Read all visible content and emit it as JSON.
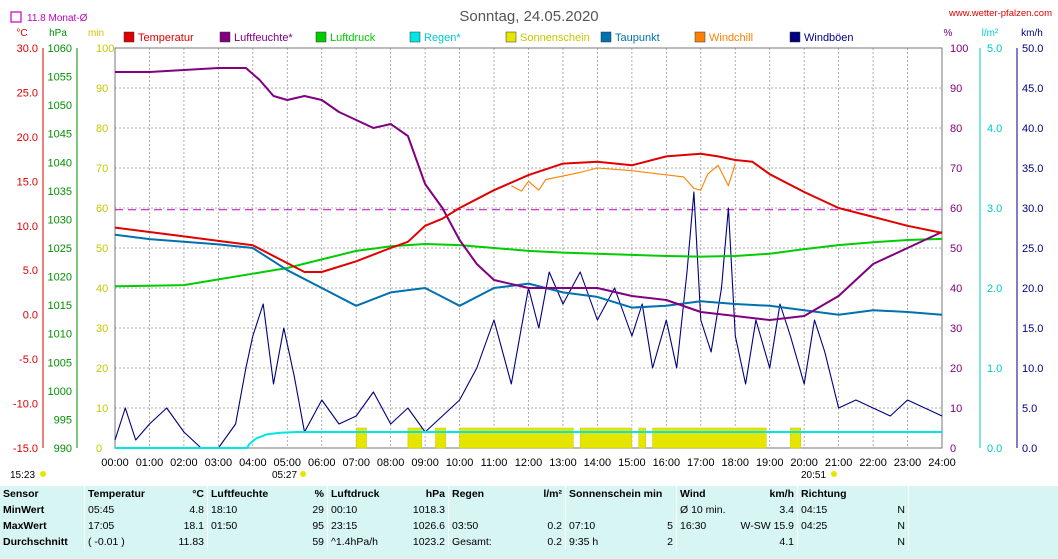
{
  "header": {
    "title": "Sonntag, 24.05.2020",
    "site": "www.wetter-pfalzen.com",
    "monthly_avg": "11.8 Monat-Ø",
    "sunrise": "05:27",
    "sunset": "20:51",
    "now": "15:23"
  },
  "chart_data": {
    "type": "line",
    "title": "Sonntag, 24.05.2020",
    "x_ticks": [
      "00:00",
      "01:00",
      "02:00",
      "03:00",
      "04:00",
      "05:00",
      "06:00",
      "07:00",
      "08:00",
      "09:00",
      "10:00",
      "11:00",
      "12:00",
      "13:00",
      "14:00",
      "15:00",
      "16:00",
      "17:00",
      "18:00",
      "19:00",
      "20:00",
      "21:00",
      "22:00",
      "23:00",
      "24:00"
    ],
    "axes": {
      "temperature": {
        "unit": "°C",
        "range": [
          -15,
          30
        ],
        "ticks": [
          "30.0",
          "25.0",
          "20.0",
          "15.0",
          "10.0",
          "5.0",
          "0.0",
          "-5.0",
          "-10.0",
          "-15.0"
        ]
      },
      "pressure": {
        "unit": "hPa",
        "range": [
          990,
          1060
        ],
        "ticks": [
          "1060",
          "1055",
          "1050",
          "1045",
          "1040",
          "1035",
          "1030",
          "1025",
          "1020",
          "1015",
          "1010",
          "1005",
          "1000",
          "995",
          "990"
        ]
      },
      "sunshine": {
        "unit": "min",
        "range": [
          0,
          100
        ],
        "ticks": [
          "100",
          "90",
          "80",
          "70",
          "60",
          "50",
          "40",
          "30",
          "20",
          "10",
          "0"
        ]
      },
      "humidity": {
        "unit": "%",
        "range": [
          0,
          100
        ],
        "ticks": [
          "100",
          "90",
          "80",
          "70",
          "60",
          "50",
          "40",
          "30",
          "20",
          "10",
          "0"
        ]
      },
      "rain": {
        "unit": "l/m²",
        "range": [
          0,
          5
        ],
        "ticks": [
          "5.0",
          "4.0",
          "3.0",
          "2.0",
          "1.0",
          "0.0"
        ]
      },
      "wind": {
        "unit": "km/h",
        "range": [
          0,
          50
        ],
        "ticks": [
          "50.0",
          "45.0",
          "40.0",
          "35.0",
          "30.0",
          "25.0",
          "20.0",
          "15.0",
          "10.0",
          "5.0",
          "0.0"
        ]
      }
    },
    "legend": [
      {
        "name": "Temperatur",
        "color": "#e00000"
      },
      {
        "name": "Luftfeuchte*",
        "color": "#800080"
      },
      {
        "name": "Luftdruck",
        "color": "#00cc00"
      },
      {
        "name": "Regen*",
        "color": "#00e5e5"
      },
      {
        "name": "Sonnenschein",
        "color": "#e5e500"
      },
      {
        "name": "Taupunkt",
        "color": "#0070b0"
      },
      {
        "name": "Windchill",
        "color": "#ff8000"
      },
      {
        "name": "Windböen",
        "color": "#000080"
      }
    ],
    "monthly_avg_value": 11.8,
    "series": [
      {
        "name": "Temperatur",
        "axis": "temperature",
        "color": "#e00000",
        "x": [
          0,
          1,
          2,
          3,
          4,
          5,
          5.5,
          6,
          7,
          8,
          8.5,
          9,
          9.5,
          10,
          11,
          12,
          13,
          14,
          15,
          16,
          17,
          17.5,
          18,
          18.5,
          19,
          20,
          21,
          22,
          23,
          24
        ],
        "y": [
          9.8,
          9.3,
          8.8,
          8.3,
          7.8,
          5.8,
          4.8,
          4.8,
          6.0,
          7.5,
          8.2,
          10.0,
          10.8,
          12.0,
          14.0,
          15.7,
          17.0,
          17.2,
          16.8,
          17.8,
          18.1,
          17.8,
          17.4,
          17.2,
          15.8,
          13.8,
          12.0,
          11.0,
          10.0,
          9.2
        ]
      },
      {
        "name": "Windchill",
        "axis": "temperature",
        "color": "#ff8000",
        "x": [
          11.5,
          11.8,
          12,
          12.3,
          12.5,
          13.5,
          14,
          15,
          16.5,
          16.8,
          17,
          17.2,
          17.5,
          17.8,
          18
        ],
        "y": [
          14.5,
          13.9,
          15.0,
          14.0,
          15.2,
          16.0,
          16.5,
          16.2,
          15.5,
          14.2,
          14.0,
          15.8,
          16.8,
          14.5,
          17.0
        ]
      },
      {
        "name": "Taupunkt",
        "axis": "temperature",
        "color": "#0070b0",
        "x": [
          0,
          1,
          2,
          3,
          4,
          5,
          6,
          7,
          8,
          9,
          9.5,
          10,
          11,
          12,
          13,
          14,
          15,
          16,
          17,
          18,
          19,
          20,
          21,
          22,
          23,
          24
        ],
        "y": [
          9.0,
          8.5,
          8.2,
          7.9,
          7.5,
          5.0,
          3.0,
          1.0,
          2.5,
          3.0,
          2.0,
          1.0,
          3.0,
          3.5,
          2.5,
          2.0,
          0.8,
          1.0,
          1.5,
          1.2,
          1.0,
          0.5,
          0.0,
          0.5,
          0.3,
          0.0
        ]
      },
      {
        "name": "Luftfeuchte*",
        "axis": "humidity",
        "color": "#800080",
        "x": [
          0,
          1,
          2,
          3,
          3.8,
          4.2,
          4.6,
          5,
          5.5,
          6,
          6.5,
          7,
          7.5,
          8,
          8.5,
          9,
          9.5,
          10,
          10.5,
          11,
          12,
          13,
          14,
          15,
          16,
          17,
          18,
          19,
          20,
          21,
          22,
          23,
          24
        ],
        "y": [
          94,
          94,
          94.5,
          95,
          95,
          92,
          88,
          87,
          88,
          87,
          84,
          82,
          80,
          81,
          78,
          66,
          60,
          52,
          46,
          42,
          40,
          40,
          40,
          38,
          37,
          34,
          33,
          32,
          33,
          38,
          46,
          50,
          54
        ]
      },
      {
        "name": "Luftdruck",
        "axis": "pressure",
        "color": "#00cc00",
        "x": [
          0,
          2,
          3,
          4,
          5,
          6,
          7,
          8,
          9,
          10,
          11,
          12,
          13,
          14,
          15,
          16,
          17,
          18,
          19,
          20,
          21,
          22,
          23,
          24
        ],
        "y": [
          1018.3,
          1018.5,
          1019.5,
          1020.5,
          1021.5,
          1023,
          1024.5,
          1025.3,
          1025.7,
          1025.5,
          1025,
          1024.5,
          1024.2,
          1024.0,
          1023.8,
          1023.6,
          1023.5,
          1023.6,
          1024,
          1024.8,
          1025.5,
          1026.0,
          1026.4,
          1026.6
        ]
      },
      {
        "name": "Regen*",
        "axis": "rain",
        "color": "#00e5e5",
        "x": [
          0,
          3.83,
          3.9,
          4.1,
          4.4,
          4.8,
          5.3,
          6,
          24
        ],
        "y": [
          0,
          0,
          0.05,
          0.12,
          0.17,
          0.19,
          0.2,
          0.2,
          0.2
        ]
      },
      {
        "name": "Windböen",
        "axis": "wind",
        "color": "#000080",
        "x": [
          0,
          0.3,
          0.6,
          1,
          1.5,
          2,
          2.5,
          3,
          3.5,
          3.8,
          4,
          4.3,
          4.6,
          4.9,
          5.2,
          5.5,
          6,
          6.5,
          7,
          7.5,
          8,
          8.5,
          9,
          9.5,
          10,
          10.5,
          11,
          11.5,
          12,
          12.3,
          12.6,
          13,
          13.5,
          14,
          14.5,
          15,
          15.3,
          15.6,
          16,
          16.3,
          16.6,
          16.8,
          17,
          17.3,
          17.6,
          17.8,
          18,
          18.3,
          18.6,
          19,
          19.3,
          19.6,
          20,
          20.3,
          20.6,
          21,
          21.5,
          22,
          22.5,
          23,
          23.5,
          24
        ],
        "y": [
          1,
          5,
          1,
          3,
          5,
          2,
          0,
          0,
          3,
          10,
          14,
          18,
          8,
          15,
          9,
          2,
          6,
          3,
          4,
          7,
          3,
          5,
          2,
          4,
          6,
          10,
          16,
          8,
          20,
          15,
          22,
          18,
          22,
          16,
          20,
          14,
          18,
          10,
          16,
          10,
          22,
          32,
          16,
          12,
          20,
          30,
          14,
          8,
          16,
          10,
          18,
          14,
          8,
          16,
          12,
          5,
          6,
          5,
          4,
          6,
          5,
          4
        ]
      }
    ],
    "sunshine_blocks": [
      [
        7.0,
        7.3
      ],
      [
        8.5,
        8.9
      ],
      [
        9.3,
        9.6
      ],
      [
        10.0,
        13.3
      ],
      [
        13.5,
        15.0
      ],
      [
        15.2,
        15.4
      ],
      [
        15.6,
        18.9
      ],
      [
        19.6,
        19.9
      ]
    ]
  },
  "stats": {
    "headers": {
      "sensor": "Sensor",
      "temp": "Temperatur",
      "temp_unit": "°C",
      "hum": "Luftfeuchte",
      "hum_unit": "%",
      "press": "Luftdruck",
      "press_unit": "hPa",
      "rain": "Regen",
      "rain_unit": "l/m²",
      "sun": "Sonnenschein min",
      "wind": "Wind",
      "wind_unit": "km/h",
      "dir": "Richtung"
    },
    "rows": [
      {
        "label": "MinWert",
        "temp_time": "05:45",
        "temp_val": "4.8",
        "hum_time": "18:10",
        "hum_val": "29",
        "press_time": "00:10",
        "press_val": "1018.3",
        "rain_time": "",
        "rain_val": "",
        "sun_time": "",
        "sun_val": "",
        "wind_time": "Ø 10 min.",
        "wind_val": "3.4",
        "dir_time": "04:15",
        "dir_val": "N"
      },
      {
        "label": "MaxWert",
        "temp_time": "17:05",
        "temp_val": "18.1",
        "hum_time": "01:50",
        "hum_val": "95",
        "press_time": "23:15",
        "press_val": "1026.6",
        "rain_time": "03:50",
        "rain_val": "0.2",
        "sun_time": "07:10",
        "sun_val": "5",
        "wind_time": "16:30",
        "wind_val": "W-SW 15.9",
        "dir_time": "04:25",
        "dir_val": "N"
      },
      {
        "label": "Durchschnitt",
        "temp_time": "( -0.01 )",
        "temp_val": "11.83",
        "hum_time": "",
        "hum_val": "59",
        "press_time": "^1.4hPa/h",
        "press_val": "1023.2",
        "rain_time": "Gesamt:",
        "rain_val": "0.2",
        "sun_time": "9:35 h",
        "sun_val": "2",
        "wind_time": "",
        "wind_val": "4.1",
        "dir_time": "",
        "dir_val": "N"
      }
    ]
  }
}
